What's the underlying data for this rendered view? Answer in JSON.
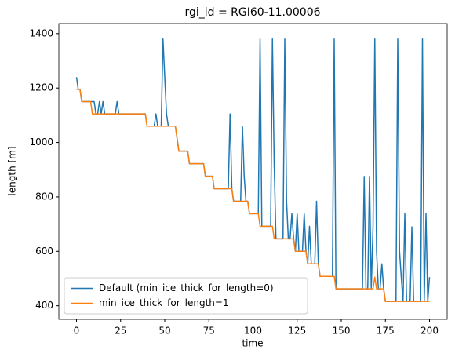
{
  "chart_data": {
    "type": "line",
    "title": "rgi_id = RGI60-11.00006",
    "xlabel": "time",
    "ylabel": "length [m]",
    "x": [
      0,
      1,
      2,
      3,
      4,
      5,
      6,
      7,
      8,
      9,
      10,
      11,
      12,
      13,
      14,
      15,
      16,
      17,
      18,
      19,
      20,
      21,
      22,
      23,
      24,
      25,
      26,
      27,
      28,
      29,
      30,
      31,
      32,
      33,
      34,
      35,
      36,
      37,
      38,
      39,
      40,
      41,
      42,
      43,
      44,
      45,
      46,
      47,
      48,
      49,
      50,
      51,
      52,
      53,
      54,
      55,
      56,
      57,
      58,
      59,
      60,
      61,
      62,
      63,
      64,
      65,
      66,
      67,
      68,
      69,
      70,
      71,
      72,
      73,
      74,
      75,
      76,
      77,
      78,
      79,
      80,
      81,
      82,
      83,
      84,
      85,
      86,
      87,
      88,
      89,
      90,
      91,
      92,
      93,
      94,
      95,
      96,
      97,
      98,
      99,
      100,
      101,
      102,
      103,
      104,
      105,
      106,
      107,
      108,
      109,
      110,
      111,
      112,
      113,
      114,
      115,
      116,
      117,
      118,
      119,
      120,
      121,
      122,
      123,
      124,
      125,
      126,
      127,
      128,
      129,
      130,
      131,
      132,
      133,
      134,
      135,
      136,
      137,
      138,
      139,
      140,
      141,
      142,
      143,
      144,
      145,
      146,
      147,
      148,
      149,
      150,
      151,
      152,
      153,
      154,
      155,
      156,
      157,
      158,
      159,
      160,
      161,
      162,
      163,
      164,
      165,
      166,
      167,
      168,
      169,
      170,
      171,
      172,
      173,
      174,
      175,
      176,
      177,
      178,
      179,
      180,
      181,
      182,
      183,
      184,
      185,
      186,
      187,
      188,
      189,
      190,
      191,
      192,
      193,
      194,
      195,
      196,
      197,
      198,
      199,
      200
    ],
    "series": [
      {
        "name": "Default (min_ice_thick_for_length=0)",
        "color": "#1f77b4",
        "values": [
          1240,
          1195,
          1195,
          1150,
          1150,
          1150,
          1150,
          1150,
          1150,
          1150,
          1150,
          1105,
          1105,
          1150,
          1105,
          1150,
          1105,
          1105,
          1105,
          1105,
          1105,
          1105,
          1105,
          1150,
          1105,
          1105,
          1105,
          1105,
          1105,
          1105,
          1105,
          1105,
          1105,
          1105,
          1105,
          1105,
          1105,
          1105,
          1105,
          1105,
          1060,
          1060,
          1060,
          1060,
          1060,
          1105,
          1060,
          1060,
          1060,
          1380,
          1240,
          1105,
          1060,
          1060,
          1060,
          1060,
          1060,
          1015,
          968,
          968,
          968,
          968,
          968,
          968,
          922,
          922,
          922,
          922,
          922,
          922,
          922,
          922,
          922,
          876,
          876,
          876,
          876,
          876,
          830,
          830,
          830,
          830,
          830,
          830,
          830,
          830,
          830,
          1105,
          830,
          784,
          784,
          784,
          784,
          784,
          1060,
          875,
          784,
          784,
          738,
          738,
          738,
          738,
          738,
          738,
          1380,
          692,
          692,
          692,
          692,
          692,
          692,
          1380,
          920,
          646,
          646,
          646,
          646,
          646,
          1380,
          784,
          646,
          646,
          738,
          646,
          600,
          738,
          600,
          600,
          600,
          738,
          600,
          554,
          692,
          554,
          554,
          554,
          784,
          554,
          508,
          508,
          508,
          508,
          508,
          508,
          508,
          508,
          1380,
          462,
          462,
          462,
          462,
          462,
          462,
          462,
          462,
          462,
          462,
          462,
          462,
          462,
          462,
          462,
          462,
          875,
          462,
          462,
          875,
          462,
          690,
          1380,
          600,
          462,
          462,
          554,
          462,
          416,
          416,
          416,
          416,
          416,
          416,
          416,
          1380,
          600,
          505,
          416,
          738,
          416,
          416,
          416,
          690,
          416,
          416,
          416,
          416,
          416,
          1380,
          416,
          738,
          416,
          505
        ]
      },
      {
        "name": "min_ice_thick_for_length=1",
        "color": "#ff7f0e",
        "values": [
          1195,
          1195,
          1195,
          1150,
          1150,
          1150,
          1150,
          1150,
          1150,
          1105,
          1105,
          1105,
          1105,
          1105,
          1105,
          1105,
          1105,
          1105,
          1105,
          1105,
          1105,
          1105,
          1105,
          1105,
          1105,
          1105,
          1105,
          1105,
          1105,
          1105,
          1105,
          1105,
          1105,
          1105,
          1105,
          1105,
          1105,
          1105,
          1105,
          1105,
          1060,
          1060,
          1060,
          1060,
          1060,
          1060,
          1060,
          1060,
          1060,
          1060,
          1060,
          1060,
          1060,
          1060,
          1060,
          1060,
          1060,
          1015,
          968,
          968,
          968,
          968,
          968,
          968,
          922,
          922,
          922,
          922,
          922,
          922,
          922,
          922,
          922,
          876,
          876,
          876,
          876,
          876,
          830,
          830,
          830,
          830,
          830,
          830,
          830,
          830,
          830,
          830,
          830,
          784,
          784,
          784,
          784,
          784,
          784,
          784,
          784,
          784,
          738,
          738,
          738,
          738,
          738,
          738,
          692,
          692,
          692,
          692,
          692,
          692,
          692,
          692,
          646,
          646,
          646,
          646,
          646,
          646,
          646,
          646,
          646,
          646,
          646,
          646,
          600,
          600,
          600,
          600,
          600,
          600,
          600,
          554,
          554,
          554,
          554,
          554,
          554,
          554,
          508,
          508,
          508,
          508,
          508,
          508,
          508,
          508,
          508,
          462,
          462,
          462,
          462,
          462,
          462,
          462,
          462,
          462,
          462,
          462,
          462,
          462,
          462,
          462,
          462,
          462,
          462,
          462,
          462,
          462,
          462,
          505,
          462,
          462,
          462,
          462,
          462,
          416,
          416,
          416,
          416,
          416,
          416,
          416,
          416,
          416,
          416,
          416,
          416,
          416,
          416,
          416,
          416,
          416,
          416,
          416,
          416,
          416,
          416,
          416,
          416,
          416,
          416
        ]
      }
    ],
    "xlim": [
      -10,
      210
    ],
    "ylim": [
      350,
      1437
    ],
    "xticks": [
      0,
      25,
      50,
      75,
      100,
      125,
      150,
      175,
      200
    ],
    "yticks": [
      400,
      600,
      800,
      1000,
      1200,
      1400
    ],
    "legend": "lower left"
  }
}
